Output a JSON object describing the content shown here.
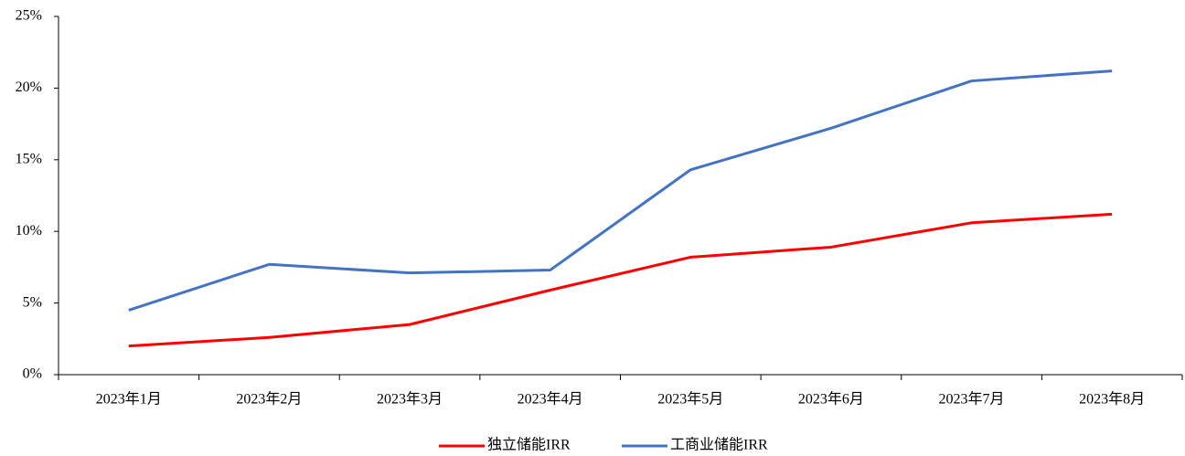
{
  "chart_data": {
    "type": "line",
    "categories": [
      "2023年1月",
      "2023年2月",
      "2023年3月",
      "2023年4月",
      "2023年5月",
      "2023年6月",
      "2023年7月",
      "2023年8月"
    ],
    "series": [
      {
        "name": "独立储能IRR",
        "color": "#ff0000",
        "values": [
          2.0,
          2.6,
          3.5,
          5.9,
          8.2,
          8.9,
          10.6,
          11.2
        ]
      },
      {
        "name": "工商业储能IRR",
        "color": "#4472c4",
        "values": [
          4.5,
          7.7,
          7.1,
          7.3,
          14.3,
          17.2,
          20.5,
          21.2
        ]
      }
    ],
    "ylim": [
      0,
      25
    ],
    "yticks": [
      {
        "value": 0,
        "label": "0%"
      },
      {
        "value": 5,
        "label": "5%"
      },
      {
        "value": 10,
        "label": "10%"
      },
      {
        "value": 15,
        "label": "15%"
      },
      {
        "value": 20,
        "label": "20%"
      },
      {
        "value": 25,
        "label": "25%"
      }
    ],
    "grid": false,
    "legend": "bottom"
  }
}
